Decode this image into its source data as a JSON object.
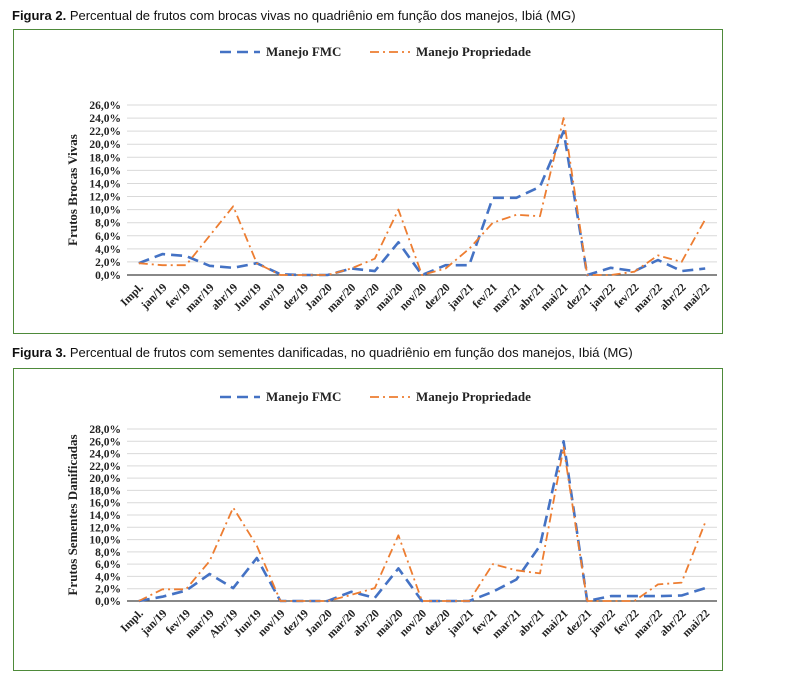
{
  "captions": [
    {
      "label": "Figura 2.",
      "text": "Percentual de frutos com brocas vivas no quadriênio em função dos manejos, Ibiá (MG)"
    },
    {
      "label": "Figura 3.",
      "text": "Percentual de frutos com sementes danificadas, no quadriênio em função dos manejos, Ibiá (MG)"
    }
  ],
  "colors": {
    "fmc": "#4472c4",
    "prop": "#ed7d31",
    "grid": "#d9d9d9",
    "border": "#4e8a3a"
  },
  "chart_data": [
    {
      "type": "line",
      "title": "",
      "ylabel": "Frutos Brocas Vivas",
      "xlabel": "",
      "ylim": [
        0,
        26
      ],
      "ytick_step": 2,
      "ytick_labels": [
        "0,0%",
        "2,0%",
        "4,0%",
        "6,0%",
        "8,0%",
        "10,0%",
        "12,0%",
        "14,0%",
        "16,0%",
        "18,0%",
        "20,0%",
        "22,0%",
        "24,0%",
        "26,0%"
      ],
      "categories": [
        "Impl.",
        "jan/19",
        "fev/19",
        "mar/19",
        "abr/19",
        "Jun/19",
        "nov/19",
        "dez/19",
        "Jan/20",
        "mar/20",
        "abr/20",
        "mai/20",
        "nov/20",
        "dez/20",
        "jan/21",
        "fev/21",
        "mar/21",
        "abr/21",
        "mai/21",
        "dez/21",
        "jan/22",
        "fev/22",
        "mar/22",
        "abr/22",
        "mai/22"
      ],
      "series": [
        {
          "name": "Manejo FMC",
          "values": [
            1.8,
            3.2,
            2.9,
            1.4,
            1.1,
            1.8,
            0.1,
            0.0,
            0.0,
            1.0,
            0.6,
            5.0,
            0.0,
            1.5,
            1.5,
            11.8,
            11.8,
            13.5,
            22.0,
            0.0,
            1.1,
            0.6,
            2.3,
            0.6,
            1.0
          ]
        },
        {
          "name": "Manejo Propriedade",
          "values": [
            1.8,
            1.5,
            1.5,
            6.0,
            10.5,
            1.8,
            0.0,
            0.0,
            0.0,
            1.0,
            2.5,
            10.0,
            0.0,
            1.0,
            4.0,
            8.0,
            9.2,
            9.0,
            24.0,
            0.0,
            0.0,
            0.5,
            3.0,
            2.0,
            8.5
          ]
        }
      ],
      "legend": "top"
    },
    {
      "type": "line",
      "title": "",
      "ylabel": "Frutos Sementes Danificadas",
      "xlabel": "",
      "ylim": [
        0,
        28
      ],
      "ytick_step": 2,
      "ytick_labels": [
        "0,0%",
        "2,0%",
        "4,0%",
        "6,0%",
        "8,0%",
        "10,0%",
        "12,0%",
        "14,0%",
        "16,0%",
        "18,0%",
        "20,0%",
        "22,0%",
        "24,0%",
        "26,0%",
        "28,0%"
      ],
      "categories": [
        "Impl.",
        "jan/19",
        "fev/19",
        "mar/19",
        "Abr/19",
        "Jun/19",
        "nov/19",
        "dez/19",
        "Jan/20",
        "mar/20",
        "abr/20",
        "mai/20",
        "nov/20",
        "dez/20",
        "jan/21",
        "fev/21",
        "mar/21",
        "abr/21",
        "mai/21",
        "dez/21",
        "jan/22",
        "fev/22",
        "mar/22",
        "abr/22",
        "mai/22"
      ],
      "series": [
        {
          "name": "Manejo FMC",
          "values": [
            0.0,
            0.7,
            1.7,
            4.4,
            2.1,
            7.0,
            0.0,
            0.0,
            0.0,
            1.5,
            0.5,
            5.3,
            0.0,
            0.0,
            0.0,
            1.5,
            3.5,
            9.0,
            26.0,
            0.0,
            0.8,
            0.8,
            0.8,
            0.9,
            2.1
          ]
        },
        {
          "name": "Manejo Propriedade",
          "values": [
            0.0,
            1.9,
            1.9,
            6.5,
            15.2,
            9.0,
            0.0,
            0.0,
            0.0,
            1.0,
            2.1,
            10.7,
            0.0,
            0.0,
            0.0,
            6.0,
            5.0,
            4.5,
            25.0,
            0.0,
            0.0,
            0.0,
            2.7,
            3.0,
            12.8
          ]
        }
      ],
      "legend": "top"
    }
  ]
}
